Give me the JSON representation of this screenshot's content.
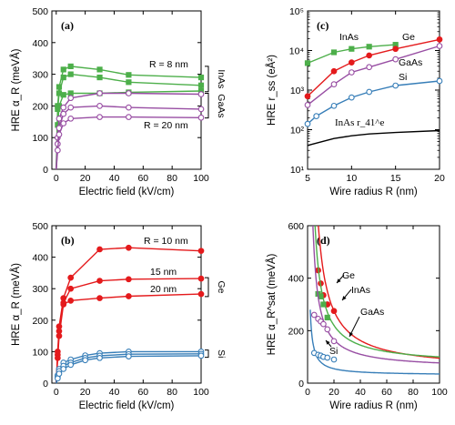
{
  "colors": {
    "green": "#4daf4a",
    "red": "#e41a1c",
    "purple": "#984ea3",
    "blue": "#377eb8",
    "black": "#000000"
  },
  "chart_data": [
    {
      "id": "a",
      "type": "line",
      "panel_label": "(a)",
      "xlabel": "Electric field (kV/cm)",
      "ylabel": "HRE α_R (meVÅ)",
      "xlim": [
        -3,
        100
      ],
      "ylim": [
        0,
        500
      ],
      "xticks": [
        0,
        20,
        40,
        60,
        80,
        100
      ],
      "yticks": [
        0,
        100,
        200,
        300,
        400,
        500
      ],
      "annotations": [
        "R = 8 nm",
        "R = 20 nm"
      ],
      "bracket_labels": [
        "InAs",
        "GaAs"
      ],
      "series": [
        {
          "group": "InAs",
          "color": "green",
          "marker": "square",
          "x": [
            0,
            1,
            2,
            5,
            10,
            30,
            50,
            100
          ],
          "y": [
            0,
            200,
            260,
            315,
            325,
            315,
            298,
            290
          ]
        },
        {
          "group": "InAs",
          "color": "green",
          "marker": "square",
          "x": [
            0,
            1,
            2,
            5,
            10,
            30,
            50,
            100
          ],
          "y": [
            0,
            190,
            240,
            290,
            300,
            290,
            275,
            265
          ]
        },
        {
          "group": "InAs",
          "color": "green",
          "marker": "square",
          "x": [
            0,
            1,
            2,
            5,
            10,
            30,
            50,
            100
          ],
          "y": [
            0,
            140,
            200,
            235,
            240,
            240,
            243,
            247
          ]
        },
        {
          "group": "GaAs",
          "color": "purple",
          "marker": "circle",
          "x": [
            0,
            1,
            2,
            5,
            10,
            30,
            50,
            100
          ],
          "y": [
            0,
            100,
            160,
            195,
            225,
            240,
            240,
            237
          ]
        },
        {
          "group": "GaAs",
          "color": "purple",
          "marker": "circle",
          "x": [
            0,
            1,
            2,
            5,
            10,
            30,
            50,
            100
          ],
          "y": [
            0,
            80,
            130,
            175,
            195,
            200,
            195,
            190
          ]
        },
        {
          "group": "GaAs",
          "color": "purple",
          "marker": "circle",
          "x": [
            0,
            1,
            2,
            5,
            10,
            30,
            50,
            100
          ],
          "y": [
            0,
            60,
            110,
            145,
            160,
            165,
            165,
            163
          ]
        }
      ]
    },
    {
      "id": "b",
      "type": "line",
      "panel_label": "(b)",
      "xlabel": "Electric field (kV/cm)",
      "ylabel": "HRE α_R (meVÅ)",
      "xlim": [
        -3,
        100
      ],
      "ylim": [
        0,
        500
      ],
      "xticks": [
        0,
        20,
        40,
        60,
        80,
        100
      ],
      "yticks": [
        0,
        100,
        200,
        300,
        400,
        500
      ],
      "annotations": [
        "R = 10 nm",
        "15 nm",
        "20 nm"
      ],
      "bracket_labels": [
        "Ge",
        "Si"
      ],
      "series": [
        {
          "group": "Ge",
          "color": "red",
          "marker": "circle",
          "x": [
            0,
            1,
            2,
            5,
            10,
            30,
            50,
            100
          ],
          "y": [
            0,
            100,
            180,
            270,
            335,
            425,
            430,
            420
          ]
        },
        {
          "group": "Ge",
          "color": "red",
          "marker": "circle",
          "x": [
            0,
            1,
            2,
            5,
            10,
            30,
            50,
            100
          ],
          "y": [
            0,
            90,
            165,
            255,
            300,
            325,
            330,
            332
          ]
        },
        {
          "group": "Ge",
          "color": "red",
          "marker": "circle",
          "x": [
            0,
            1,
            2,
            5,
            10,
            30,
            50,
            100
          ],
          "y": [
            0,
            80,
            150,
            250,
            262,
            270,
            276,
            283
          ]
        },
        {
          "group": "Si",
          "color": "blue",
          "marker": "circle",
          "x": [
            0,
            1,
            2,
            5,
            10,
            20,
            30,
            50,
            100
          ],
          "y": [
            0,
            25,
            45,
            65,
            75,
            88,
            95,
            100,
            100
          ]
        },
        {
          "group": "Si",
          "color": "blue",
          "marker": "circle",
          "x": [
            0,
            1,
            2,
            5,
            10,
            20,
            30,
            50,
            100
          ],
          "y": [
            0,
            20,
            38,
            55,
            65,
            80,
            87,
            92,
            93
          ]
        },
        {
          "group": "Si",
          "color": "blue",
          "marker": "circle",
          "x": [
            0,
            1,
            2,
            5,
            10,
            20,
            30,
            50,
            100
          ],
          "y": [
            0,
            15,
            30,
            45,
            58,
            73,
            80,
            85,
            87
          ]
        }
      ]
    },
    {
      "id": "c",
      "type": "line",
      "panel_label": "(c)",
      "yscale": "log",
      "xlabel": "Wire radius R (nm)",
      "ylabel": "HRE r_ss (eÅ²)",
      "xlim": [
        5,
        20
      ],
      "ylim": [
        10,
        100000
      ],
      "xticks": [
        5,
        10,
        15,
        20
      ],
      "ytick_labels": [
        "10¹",
        "10²",
        "10³",
        "10⁴",
        "10⁵"
      ],
      "series": [
        {
          "name": "InAs",
          "color": "green",
          "marker": "square",
          "x": [
            5,
            8,
            10,
            12,
            15
          ],
          "y": [
            4800,
            9000,
            11000,
            12500,
            14000
          ]
        },
        {
          "name": "Ge",
          "color": "red",
          "marker": "circle",
          "x": [
            5,
            8,
            10,
            12,
            15,
            20
          ],
          "y": [
            700,
            3000,
            5000,
            7500,
            11000,
            19000
          ]
        },
        {
          "name": "GaAs",
          "color": "purple",
          "marker": "circle",
          "x": [
            5,
            8,
            10,
            12,
            15,
            20
          ],
          "y": [
            420,
            1400,
            2800,
            3800,
            6000,
            13000
          ]
        },
        {
          "name": "Si",
          "color": "blue",
          "marker": "circle",
          "x": [
            5,
            6,
            8,
            10,
            12,
            15,
            20
          ],
          "y": [
            140,
            220,
            400,
            650,
            900,
            1300,
            1700
          ]
        },
        {
          "name": "InAs r_41^e",
          "color": "black",
          "marker": "none",
          "x": [
            5,
            8,
            10,
            12,
            15,
            20
          ],
          "y": [
            40,
            60,
            70,
            78,
            85,
            95
          ]
        }
      ]
    },
    {
      "id": "d",
      "type": "line",
      "panel_label": "(d)",
      "xlabel": "Wire radius R (nm)",
      "ylabel": "HRE α_R^sat (meVÅ)",
      "xlim": [
        0,
        100
      ],
      "ylim": [
        0,
        600
      ],
      "xticks": [
        0,
        20,
        40,
        60,
        80,
        100
      ],
      "yticks": [
        0,
        200,
        400,
        600
      ],
      "series": [
        {
          "name": "Ge",
          "color": "red",
          "marker": "circle",
          "points_x": [
            8,
            10,
            12,
            15,
            20
          ],
          "points_y": [
            430,
            380,
            335,
            300,
            275
          ]
        },
        {
          "name": "InAs",
          "color": "green",
          "marker": "square",
          "points_x": [
            8,
            10,
            12,
            15
          ],
          "points_y": [
            340,
            330,
            300,
            250
          ]
        },
        {
          "name": "GaAs",
          "color": "purple",
          "marker": "circle",
          "points_x": [
            5,
            8,
            10,
            12,
            15,
            20
          ],
          "points_y": [
            260,
            245,
            235,
            225,
            205,
            160
          ]
        },
        {
          "name": "Si",
          "color": "blue",
          "marker": "circle",
          "points_x": [
            5,
            8,
            10,
            12,
            15,
            20
          ],
          "points_y": [
            115,
            108,
            105,
            100,
            97,
            90
          ]
        }
      ]
    }
  ]
}
